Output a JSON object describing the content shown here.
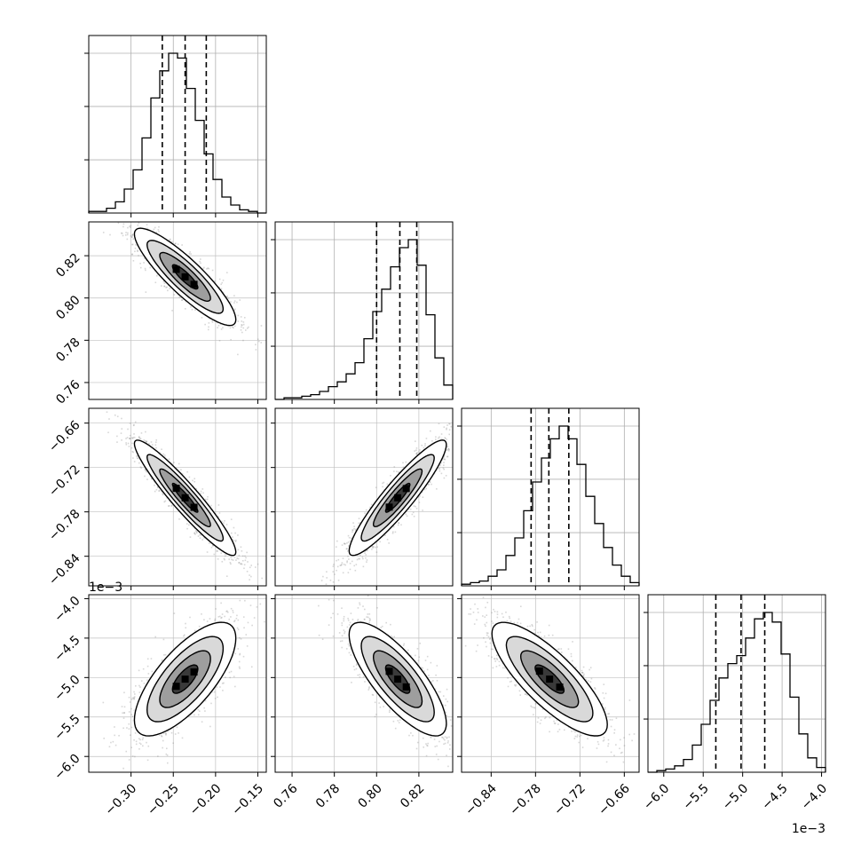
{
  "chart_data": {
    "type": "corner",
    "grid": true,
    "params": [
      {
        "range": [
          -0.35,
          -0.14
        ],
        "ticks": [
          -0.3,
          -0.25,
          -0.2,
          -0.15
        ],
        "decimals": 2,
        "quantiles": [
          -0.263,
          -0.236,
          -0.211
        ],
        "offset": ""
      },
      {
        "range": [
          0.752,
          0.836
        ],
        "ticks": [
          0.76,
          0.78,
          0.8,
          0.82
        ],
        "decimals": 2,
        "quantiles": [
          0.8,
          0.811,
          0.819
        ],
        "offset": ""
      },
      {
        "range": [
          -0.88,
          -0.64
        ],
        "ticks": [
          -0.84,
          -0.78,
          -0.72,
          -0.66
        ],
        "decimals": 2,
        "quantiles": [
          -0.786,
          -0.762,
          -0.735
        ],
        "offset": ""
      },
      {
        "range": [
          -6.2,
          -3.95
        ],
        "ticks": [
          -6.0,
          -5.5,
          -5.0,
          -4.5,
          -4.0
        ],
        "decimals": 1,
        "quantiles": [
          -5.34,
          -5.02,
          -4.72
        ],
        "offset": "1e−3"
      }
    ],
    "histograms": [
      [
        0.01,
        0.01,
        0.03,
        0.07,
        0.15,
        0.27,
        0.47,
        0.72,
        0.89,
        1.0,
        0.97,
        0.78,
        0.58,
        0.37,
        0.21,
        0.1,
        0.05,
        0.02,
        0.01,
        0.0
      ],
      [
        0.0,
        0.01,
        0.01,
        0.02,
        0.03,
        0.05,
        0.08,
        0.11,
        0.16,
        0.23,
        0.38,
        0.55,
        0.69,
        0.83,
        0.95,
        1.0,
        0.84,
        0.53,
        0.26,
        0.09
      ],
      [
        0.01,
        0.02,
        0.03,
        0.06,
        0.1,
        0.19,
        0.3,
        0.47,
        0.65,
        0.8,
        0.92,
        1.0,
        0.92,
        0.76,
        0.56,
        0.39,
        0.24,
        0.13,
        0.06,
        0.02
      ],
      [
        0.0,
        0.01,
        0.02,
        0.04,
        0.08,
        0.17,
        0.3,
        0.45,
        0.59,
        0.68,
        0.73,
        0.84,
        0.96,
        1.0,
        0.94,
        0.74,
        0.47,
        0.24,
        0.09,
        0.03
      ]
    ],
    "pairs": [
      {
        "x": 0,
        "y": 1,
        "mean": [
          -0.236,
          0.81
        ],
        "sd": [
          0.03,
          0.0115
        ],
        "rho": -0.88
      },
      {
        "x": 0,
        "y": 2,
        "mean": [
          -0.236,
          -0.761
        ],
        "sd": [
          0.03,
          0.039
        ],
        "rho": -0.94
      },
      {
        "x": 1,
        "y": 2,
        "mean": [
          0.81,
          -0.761
        ],
        "sd": [
          0.0115,
          0.039
        ],
        "rho": 0.92
      },
      {
        "x": 0,
        "y": 3,
        "mean": [
          -0.236,
          -5.02
        ],
        "sd": [
          0.03,
          0.36
        ],
        "rho": 0.72
      },
      {
        "x": 1,
        "y": 3,
        "mean": [
          0.81,
          -5.02
        ],
        "sd": [
          0.0115,
          0.36
        ],
        "rho": -0.78
      },
      {
        "x": 2,
        "y": 3,
        "mean": [
          -0.761,
          -5.02
        ],
        "sd": [
          0.039,
          0.36
        ],
        "rho": -0.8
      }
    ]
  }
}
